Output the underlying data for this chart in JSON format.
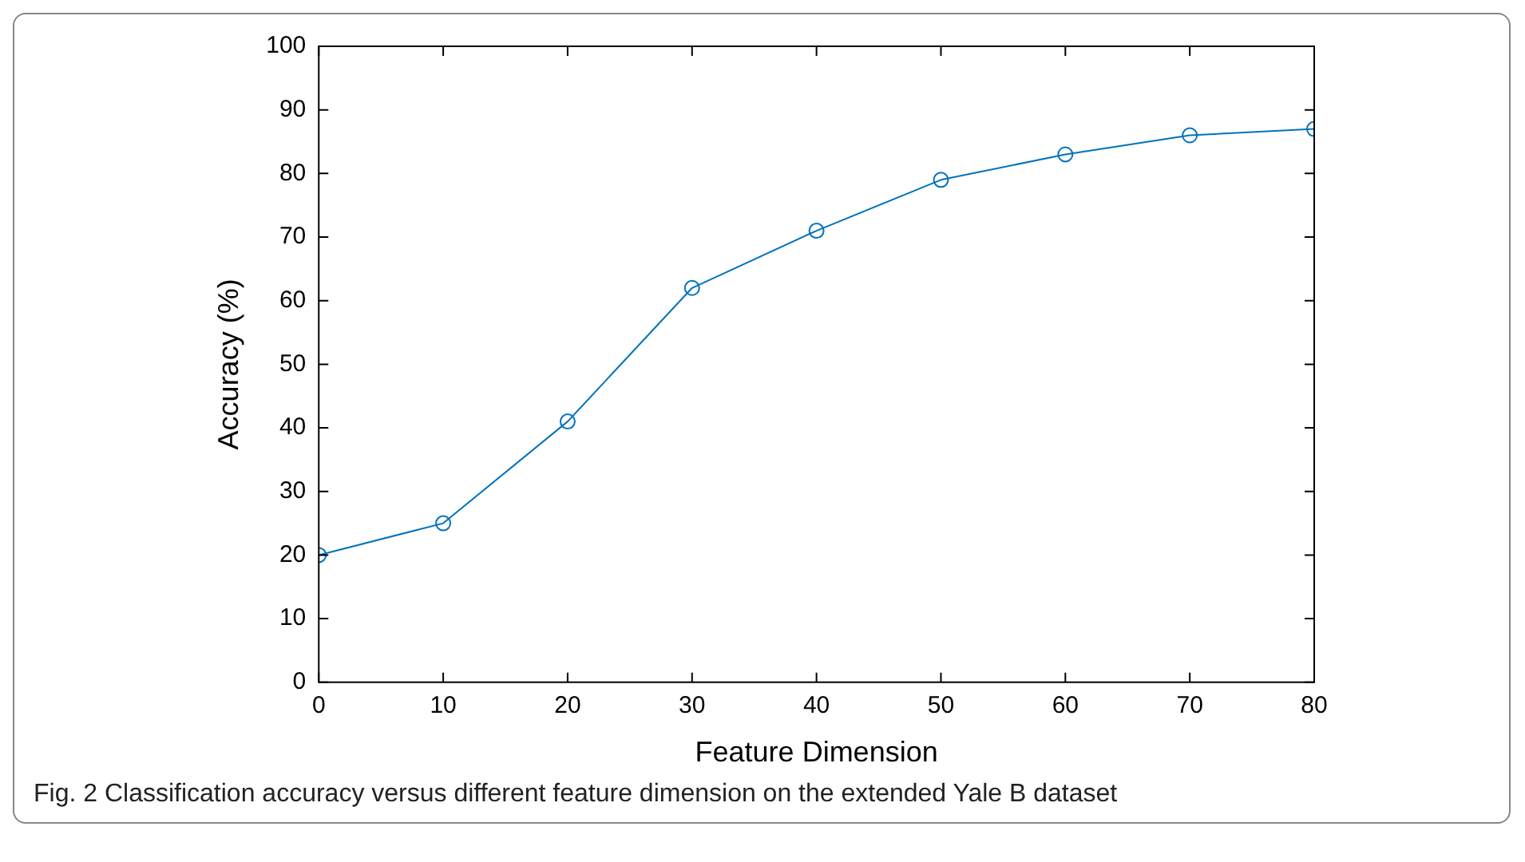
{
  "chart_data": {
    "type": "line",
    "xlabel": "Feature Dimension",
    "ylabel": "Accuracy (%)",
    "x": [
      0,
      10,
      20,
      30,
      40,
      50,
      60,
      70,
      80
    ],
    "series": [
      {
        "color": "#0072bd",
        "values": [
          20,
          25,
          41,
          62,
          71,
          79,
          83,
          86,
          87
        ]
      }
    ],
    "xlim": [
      0,
      80
    ],
    "xticks": [
      0,
      10,
      20,
      30,
      40,
      50,
      60,
      70,
      80
    ],
    "ylim": [
      0,
      100
    ],
    "yticks": [
      0,
      10,
      20,
      30,
      40,
      50,
      60,
      70,
      80,
      90,
      100
    ],
    "grid": false,
    "legend": false,
    "marker": "circle",
    "line_style": "solid",
    "annotations": [
      "Fig. 2  Classification accuracy versus different feature dimension on the extended Yale B dataset"
    ]
  }
}
